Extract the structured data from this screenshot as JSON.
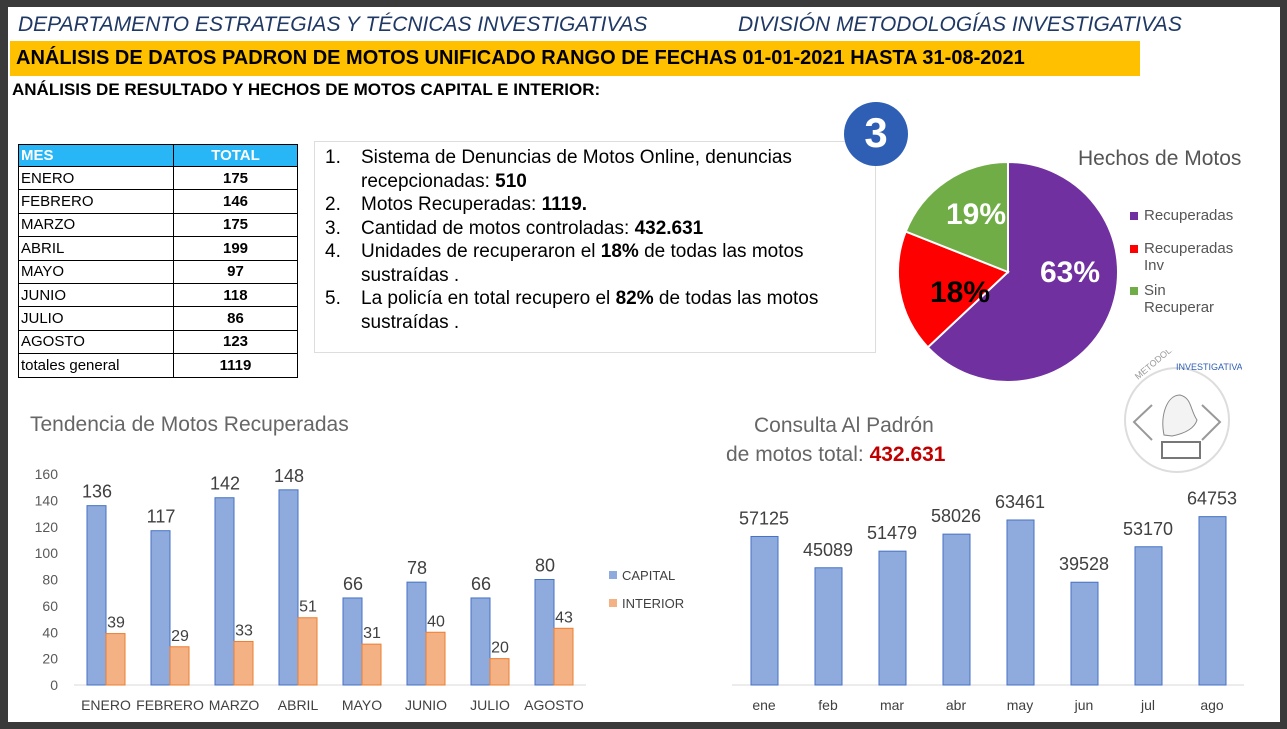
{
  "header": {
    "department": "DEPARTAMENTO  ESTRATEGIAS  Y TÉCNICAS  INVESTIGATIVAS",
    "division": "DIVISIÓN METODOLOGÍAS INVESTIGATIVAS",
    "banner": "ANÁLISIS DE DATOS PADRON DE MOTOS UNIFICADO  RANGO DE  FECHAS  01-01-2021 HASTA  31-08-2021",
    "subtitle": "ANÁLISIS DE RESULTADO Y HECHOS DE  MOTOS CAPITAL E INTERIOR:"
  },
  "table": {
    "headers": [
      "MES",
      "TOTAL"
    ],
    "rows": [
      [
        "ENERO",
        "175"
      ],
      [
        "FEBRERO",
        "146"
      ],
      [
        "MARZO",
        "175"
      ],
      [
        "ABRIL",
        "199"
      ],
      [
        "MAYO",
        "97"
      ],
      [
        "JUNIO",
        "118"
      ],
      [
        "JULIO",
        "86"
      ],
      [
        "AGOSTO",
        "123"
      ],
      [
        "totales general",
        "1119"
      ]
    ]
  },
  "badge": "3",
  "list": [
    {
      "n": "1.",
      "pre": "Sistema de  Denuncias de Motos Online, denuncias recepcionadas: ",
      "bold": "510",
      "post": ""
    },
    {
      "n": "2.",
      "pre": "Motos Recuperadas: ",
      "bold": "1119.",
      "post": ""
    },
    {
      "n": "3.",
      "pre": "Cantidad de motos controladas: ",
      "bold": "432.631",
      "post": ""
    },
    {
      "n": "4.",
      "pre": "Unidades de recuperaron el ",
      "bold": "18%",
      "post": " de todas las motos sustraídas ."
    },
    {
      "n": "5.",
      "pre": "La policía en total recupero el ",
      "bold": "82%",
      "post": " de todas las motos sustraídas ."
    }
  ],
  "logo_text": "DIVISION METODOLOGIAS INVESTIGATIVAS METROPOLITANA",
  "chart_data": [
    {
      "type": "pie",
      "title": "Hechos de Motos",
      "categories": [
        "Recuperadas",
        "Recuperadas Inv",
        "Sin Recuperar"
      ],
      "values": [
        63,
        18,
        19
      ],
      "labels": [
        "63%",
        "18%",
        "19%"
      ],
      "colors": [
        "#7030a0",
        "#ff0000",
        "#70ad47"
      ],
      "legend": "right"
    },
    {
      "type": "bar",
      "title": "Tendencia  de  Motos Recuperadas",
      "categories": [
        "ENERO",
        "FEBRERO",
        "MARZO",
        "ABRIL",
        "MAYO",
        "JUNIO",
        "JULIO",
        "AGOSTO"
      ],
      "series": [
        {
          "name": "CAPITAL",
          "values": [
            136,
            117,
            142,
            148,
            66,
            78,
            66,
            80
          ],
          "color": "#8faadc"
        },
        {
          "name": "INTERIOR",
          "values": [
            39,
            29,
            33,
            51,
            31,
            40,
            20,
            43
          ],
          "color": "#f4b183"
        }
      ],
      "yticks": [
        "0",
        "20",
        "40",
        "60",
        "80",
        "100",
        "120",
        "140",
        "160"
      ],
      "ylim": [
        0,
        160
      ],
      "legend": "right"
    },
    {
      "type": "bar",
      "title": "Consulta Al Padrón",
      "title2": "de motos  total: ",
      "total": "432.631",
      "categories": [
        "ene",
        "feb",
        "mar",
        "abr",
        "may",
        "jun",
        "jul",
        "ago"
      ],
      "values": [
        57125,
        45089,
        51479,
        58026,
        63461,
        39528,
        53170,
        64753
      ],
      "color": "#8faadc"
    }
  ]
}
